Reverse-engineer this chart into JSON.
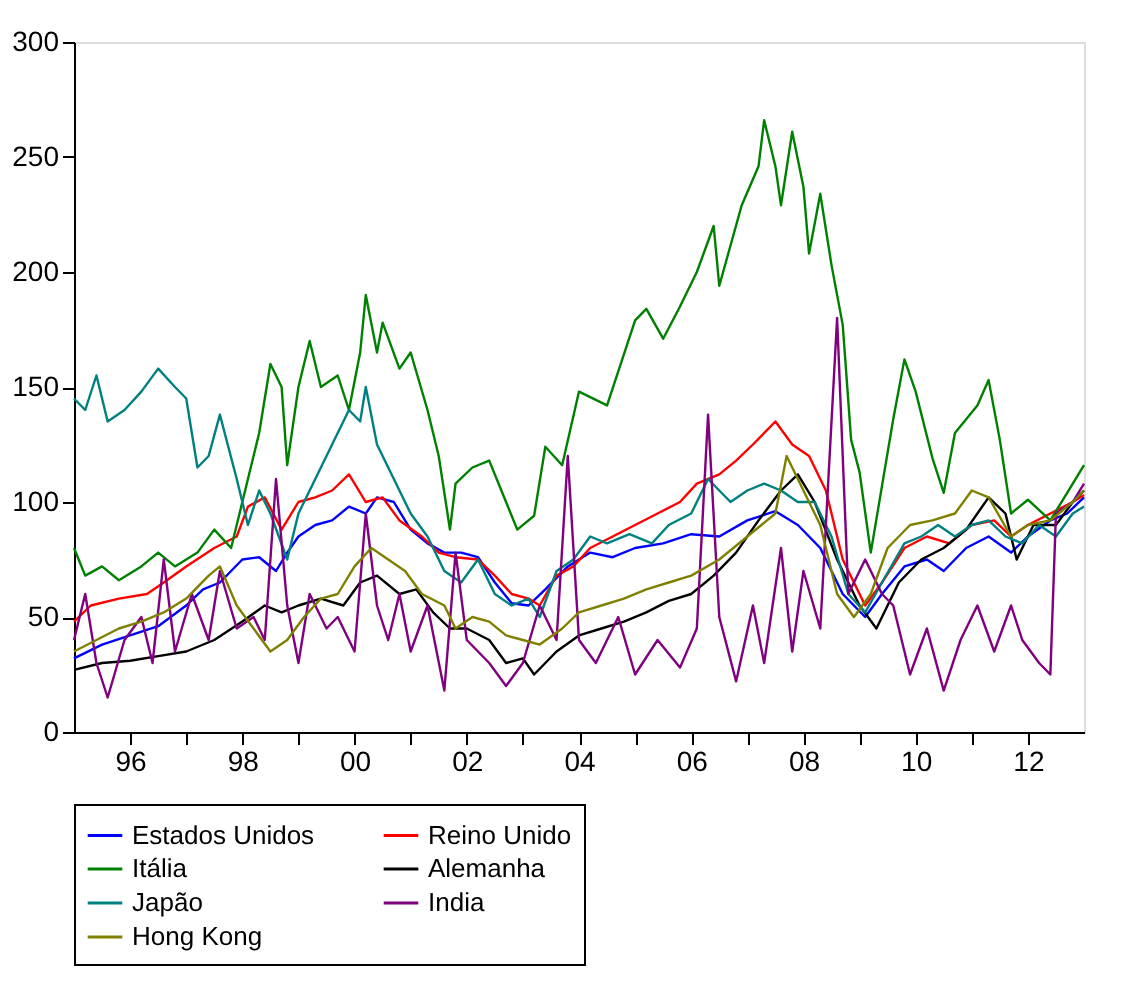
{
  "chart_data": {
    "type": "line",
    "xlim": [
      1995,
      2013
    ],
    "ylim": [
      0,
      300
    ],
    "yticks": [
      0,
      50,
      100,
      150,
      200,
      250,
      300
    ],
    "xticks": [
      {
        "value": 1996,
        "label": "96"
      },
      {
        "value": 1997,
        "label": null
      },
      {
        "value": 1998,
        "label": "98"
      },
      {
        "value": 1999,
        "label": null
      },
      {
        "value": 2000,
        "label": "00"
      },
      {
        "value": 2001,
        "label": null
      },
      {
        "value": 2002,
        "label": "02"
      },
      {
        "value": 2003,
        "label": null
      },
      {
        "value": 2004,
        "label": "04"
      },
      {
        "value": 2005,
        "label": null
      },
      {
        "value": 2006,
        "label": "06"
      },
      {
        "value": 2007,
        "label": null
      },
      {
        "value": 2008,
        "label": "08"
      },
      {
        "value": 2009,
        "label": null
      },
      {
        "value": 2010,
        "label": "10"
      },
      {
        "value": 2011,
        "label": null
      },
      {
        "value": 2012,
        "label": "12"
      }
    ],
    "grid": false,
    "legend": "bottom",
    "line_style": "solid",
    "marker": "none",
    "series": [
      {
        "name": "Estados Unidos",
        "color": "#0000ff",
        "x": [
          1995.0,
          1995.5,
          1996.0,
          1996.5,
          1997.0,
          1997.3,
          1997.6,
          1998.0,
          1998.3,
          1998.6,
          1998.8,
          1999.0,
          1999.3,
          1999.6,
          1999.9,
          2000.2,
          2000.4,
          2000.7,
          2001.0,
          2001.3,
          2001.6,
          2001.9,
          2002.2,
          2002.5,
          2002.8,
          2003.1,
          2003.4,
          2003.8,
          2004.2,
          2004.6,
          2005.0,
          2005.5,
          2006.0,
          2006.5,
          2007.0,
          2007.5,
          2007.9,
          2008.3,
          2008.7,
          2009.1,
          2009.4,
          2009.8,
          2010.2,
          2010.5,
          2010.9,
          2011.3,
          2011.7,
          2012.0,
          2012.4,
          2012.7,
          2013.0
        ],
        "values": [
          32,
          38,
          42,
          46,
          55,
          62,
          65,
          75,
          76,
          70,
          78,
          85,
          90,
          92,
          98,
          95,
          102,
          100,
          88,
          82,
          78,
          78,
          76,
          65,
          56,
          55,
          62,
          72,
          78,
          76,
          80,
          82,
          86,
          85,
          92,
          96,
          90,
          80,
          60,
          50,
          60,
          72,
          75,
          70,
          80,
          85,
          78,
          85,
          92,
          95,
          102
        ]
      },
      {
        "name": "Reino Unido",
        "color": "#ff0000",
        "x": [
          1995.0,
          1995.3,
          1995.8,
          1996.3,
          1996.6,
          1997.0,
          1997.5,
          1997.9,
          1998.1,
          1998.4,
          1998.7,
          1999.0,
          1999.3,
          1999.6,
          1999.9,
          2000.2,
          2000.5,
          2000.8,
          2001.2,
          2001.5,
          2001.8,
          2002.2,
          2002.5,
          2002.8,
          2003.1,
          2003.3,
          2003.6,
          2003.9,
          2004.2,
          2004.6,
          2005.0,
          2005.4,
          2005.8,
          2006.1,
          2006.5,
          2006.8,
          2007.1,
          2007.5,
          2007.8,
          2008.1,
          2008.4,
          2008.7,
          2009.1,
          2009.4,
          2009.8,
          2010.2,
          2010.6,
          2011.0,
          2011.4,
          2011.7,
          2012.0,
          2012.4,
          2012.8,
          2013.0
        ],
        "values": [
          48,
          55,
          58,
          60,
          65,
          72,
          80,
          85,
          98,
          102,
          88,
          100,
          102,
          105,
          112,
          100,
          102,
          92,
          85,
          78,
          76,
          75,
          68,
          60,
          58,
          55,
          68,
          72,
          80,
          85,
          90,
          95,
          100,
          108,
          112,
          118,
          125,
          135,
          125,
          120,
          105,
          75,
          55,
          65,
          80,
          85,
          82,
          90,
          92,
          85,
          90,
          95,
          100,
          103
        ]
      },
      {
        "name": "Itália",
        "color": "#008000",
        "x": [
          1995.0,
          1995.2,
          1995.5,
          1995.8,
          1996.2,
          1996.5,
          1996.8,
          1997.2,
          1997.5,
          1997.8,
          1998.0,
          1998.3,
          1998.5,
          1998.7,
          1998.8,
          1999.0,
          1999.2,
          1999.4,
          1999.7,
          1999.9,
          2000.1,
          2000.2,
          2000.4,
          2000.5,
          2000.8,
          2001.0,
          2001.3,
          2001.5,
          2001.7,
          2001.8,
          2002.1,
          2002.4,
          2002.7,
          2002.9,
          2003.2,
          2003.4,
          2003.7,
          2004.0,
          2004.5,
          2005.0,
          2005.2,
          2005.5,
          2005.8,
          2006.1,
          2006.4,
          2006.5,
          2006.9,
          2007.2,
          2007.3,
          2007.5,
          2007.6,
          2007.8,
          2008.0,
          2008.1,
          2008.3,
          2008.5,
          2008.7,
          2008.85,
          2009.0,
          2009.2,
          2009.4,
          2009.6,
          2009.8,
          2010.0,
          2010.3,
          2010.5,
          2010.7,
          2011.1,
          2011.3,
          2011.5,
          2011.7,
          2012.0,
          2012.4,
          2012.7,
          2013.0
        ],
        "values": [
          80,
          68,
          72,
          66,
          72,
          78,
          72,
          78,
          88,
          80,
          100,
          130,
          160,
          150,
          116,
          150,
          170,
          150,
          155,
          140,
          165,
          190,
          165,
          178,
          158,
          165,
          140,
          120,
          88,
          108,
          115,
          118,
          100,
          88,
          94,
          124,
          116,
          148,
          142,
          179,
          184,
          171,
          185,
          200,
          220,
          194,
          229,
          246,
          266,
          246,
          229,
          261,
          237,
          208,
          234,
          203,
          177,
          127,
          113,
          78,
          107,
          136,
          162,
          148,
          119,
          104,
          130,
          142,
          153,
          127,
          95,
          101,
          92,
          104,
          116
        ]
      },
      {
        "name": "Alemanha",
        "color": "#000000",
        "x": [
          1995.0,
          1995.5,
          1996.0,
          1996.5,
          1997.0,
          1997.5,
          1998.0,
          1998.4,
          1998.7,
          1999.0,
          1999.4,
          1999.8,
          2000.1,
          2000.4,
          2000.8,
          2001.1,
          2001.4,
          2001.7,
          2002.0,
          2002.4,
          2002.7,
          2003.0,
          2003.2,
          2003.6,
          2004.0,
          2004.4,
          2004.8,
          2005.2,
          2005.6,
          2006.0,
          2006.4,
          2006.8,
          2007.2,
          2007.6,
          2007.9,
          2008.2,
          2008.6,
          2009.0,
          2009.3,
          2009.7,
          2010.1,
          2010.5,
          2010.9,
          2011.3,
          2011.6,
          2011.8,
          2012.1,
          2012.5,
          2012.8,
          2013.0
        ],
        "values": [
          27,
          30,
          31,
          33,
          35,
          40,
          48,
          55,
          52,
          55,
          58,
          55,
          65,
          68,
          60,
          62,
          52,
          45,
          45,
          40,
          30,
          32,
          25,
          35,
          42,
          45,
          48,
          52,
          57,
          60,
          68,
          78,
          92,
          105,
          112,
          100,
          75,
          55,
          45,
          65,
          75,
          80,
          88,
          102,
          95,
          75,
          90,
          90,
          100,
          105
        ]
      },
      {
        "name": "Japão",
        "color": "#008080",
        "x": [
          1995.0,
          1995.2,
          1995.4,
          1995.6,
          1995.9,
          1996.2,
          1996.5,
          1996.8,
          1997.0,
          1997.2,
          1997.4,
          1997.6,
          1997.9,
          1998.1,
          1998.3,
          1998.5,
          1998.8,
          1999.0,
          1999.3,
          1999.6,
          1999.9,
          2000.1,
          2000.2,
          2000.4,
          2000.7,
          2001.0,
          2001.3,
          2001.6,
          2001.9,
          2002.2,
          2002.5,
          2002.8,
          2003.1,
          2003.3,
          2003.6,
          2003.9,
          2004.2,
          2004.5,
          2004.9,
          2005.3,
          2005.6,
          2006.0,
          2006.3,
          2006.7,
          2007.0,
          2007.3,
          2007.6,
          2007.9,
          2008.2,
          2008.5,
          2008.8,
          2009.1,
          2009.4,
          2009.8,
          2010.1,
          2010.4,
          2010.7,
          2011.0,
          2011.3,
          2011.6,
          2011.9,
          2012.2,
          2012.5,
          2012.8,
          2013.0
        ],
        "values": [
          145,
          140,
          155,
          135,
          140,
          148,
          158,
          150,
          145,
          115,
          120,
          138,
          110,
          90,
          105,
          95,
          75,
          95,
          110,
          125,
          140,
          135,
          150,
          125,
          110,
          95,
          85,
          70,
          65,
          75,
          60,
          55,
          58,
          50,
          70,
          75,
          85,
          82,
          86,
          82,
          90,
          95,
          110,
          100,
          105,
          108,
          105,
          100,
          100,
          85,
          60,
          52,
          65,
          82,
          85,
          90,
          85,
          90,
          92,
          85,
          82,
          90,
          85,
          95,
          98
        ]
      },
      {
        "name": "India",
        "color": "#800080",
        "x": [
          1995.0,
          1995.2,
          1995.4,
          1995.6,
          1995.9,
          1996.2,
          1996.4,
          1996.6,
          1996.8,
          1997.1,
          1997.4,
          1997.6,
          1997.9,
          1998.2,
          1998.4,
          1998.6,
          1998.8,
          1999.0,
          1999.2,
          1999.5,
          1999.7,
          2000.0,
          2000.2,
          2000.4,
          2000.6,
          2000.8,
          2001.0,
          2001.3,
          2001.6,
          2001.8,
          2002.0,
          2002.4,
          2002.7,
          2003.0,
          2003.3,
          2003.6,
          2003.8,
          2004.0,
          2004.3,
          2004.7,
          2005.0,
          2005.4,
          2005.8,
          2006.1,
          2006.3,
          2006.5,
          2006.8,
          2007.1,
          2007.3,
          2007.6,
          2007.8,
          2008.0,
          2008.3,
          2008.6,
          2008.8,
          2009.1,
          2009.4,
          2009.6,
          2009.9,
          2010.2,
          2010.5,
          2010.8,
          2011.1,
          2011.4,
          2011.7,
          2011.9,
          2012.2,
          2012.4,
          2012.5,
          2012.8,
          2013.0
        ],
        "values": [
          40,
          60,
          30,
          15,
          40,
          50,
          30,
          75,
          35,
          60,
          40,
          70,
          45,
          50,
          40,
          110,
          55,
          30,
          60,
          45,
          50,
          35,
          95,
          55,
          40,
          60,
          35,
          55,
          18,
          78,
          40,
          30,
          20,
          30,
          55,
          40,
          120,
          40,
          30,
          50,
          25,
          40,
          28,
          45,
          138,
          50,
          22,
          55,
          30,
          80,
          35,
          70,
          45,
          180,
          60,
          75,
          60,
          55,
          25,
          45,
          18,
          40,
          55,
          35,
          55,
          40,
          30,
          25,
          95,
          100,
          108
        ]
      },
      {
        "name": "Hong Kong",
        "color": "#808000",
        "x": [
          1995.0,
          1995.4,
          1995.8,
          1996.2,
          1996.6,
          1997.0,
          1997.4,
          1997.6,
          1997.9,
          1998.2,
          1998.5,
          1998.8,
          1999.1,
          1999.4,
          1999.7,
          2000.0,
          2000.3,
          2000.6,
          2000.9,
          2001.2,
          2001.6,
          2001.8,
          2002.1,
          2002.4,
          2002.7,
          2003.0,
          2003.3,
          2003.7,
          2004.0,
          2004.4,
          2004.8,
          2005.2,
          2005.6,
          2006.0,
          2006.5,
          2007.0,
          2007.5,
          2007.7,
          2008.0,
          2008.3,
          2008.6,
          2008.9,
          2009.2,
          2009.5,
          2009.9,
          2010.3,
          2010.7,
          2011.0,
          2011.3,
          2011.7,
          2012.0,
          2012.4,
          2012.8,
          2013.0
        ],
        "values": [
          35,
          40,
          45,
          48,
          52,
          58,
          68,
          72,
          55,
          45,
          35,
          40,
          50,
          58,
          60,
          72,
          80,
          75,
          70,
          60,
          55,
          45,
          50,
          48,
          42,
          40,
          38,
          45,
          52,
          55,
          58,
          62,
          65,
          68,
          75,
          85,
          95,
          120,
          105,
          90,
          60,
          50,
          60,
          80,
          90,
          92,
          95,
          105,
          102,
          85,
          90,
          92,
          100,
          105
        ]
      }
    ]
  }
}
